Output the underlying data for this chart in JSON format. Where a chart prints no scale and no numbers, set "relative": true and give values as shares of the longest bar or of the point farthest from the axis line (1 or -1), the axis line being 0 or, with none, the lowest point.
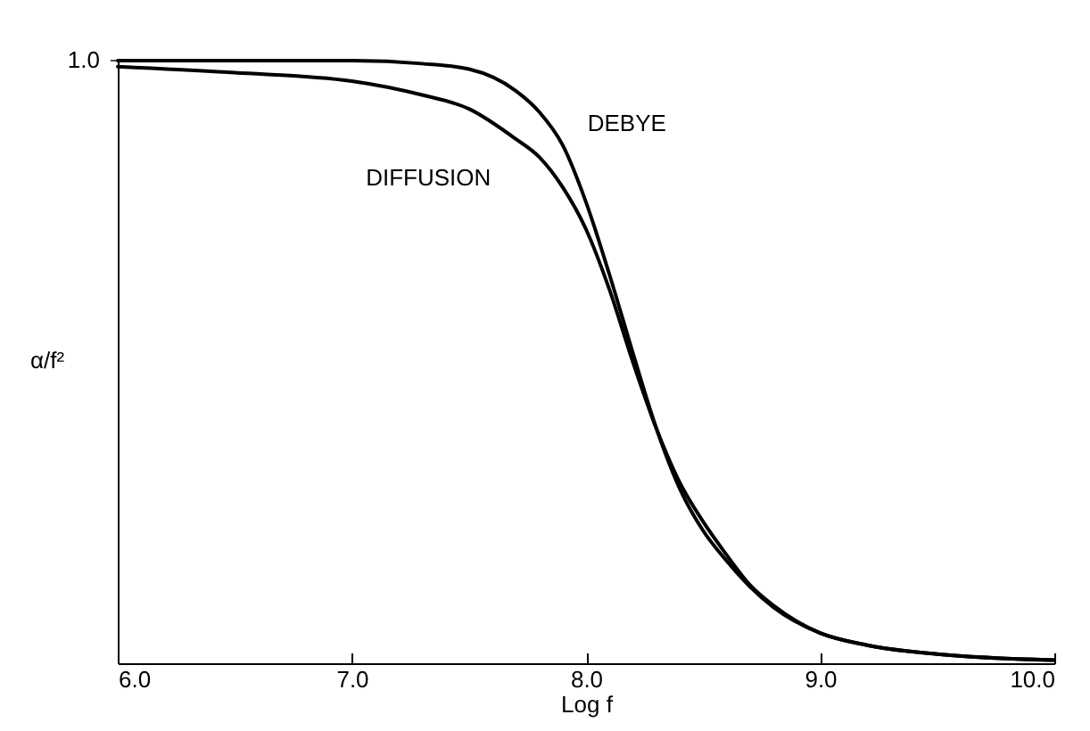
{
  "chart_data": {
    "type": "line",
    "xlabel": "Log f",
    "ylabel": "α/f²",
    "relative": true,
    "x": [
      6.0,
      6.5,
      7.0,
      7.3,
      7.5,
      7.7,
      7.8,
      7.9,
      8.0,
      8.1,
      8.2,
      8.3,
      8.4,
      8.5,
      8.6,
      8.7,
      8.8,
      9.0,
      9.2,
      9.5,
      10.0
    ],
    "xlim": [
      6.0,
      10.0
    ],
    "xticks": [
      {
        "value": 6,
        "label": "6.0"
      },
      {
        "value": 7,
        "label": "7.0"
      },
      {
        "value": 8,
        "label": "8.0"
      },
      {
        "value": 9,
        "label": "9.0"
      },
      {
        "value": 10,
        "label": "10.0"
      }
    ],
    "series": [
      {
        "name": "DEBYE",
        "color": "#000000",
        "values": [
          1.0,
          1.0,
          1.0,
          0.995,
          0.986,
          0.95,
          0.915,
          0.86,
          0.765,
          0.645,
          0.515,
          0.39,
          0.29,
          0.22,
          0.17,
          0.127,
          0.093,
          0.05,
          0.03,
          0.015,
          0.005
        ]
      },
      {
        "name": "DIFFUSION",
        "color": "#000000",
        "values": [
          0.99,
          0.98,
          0.966,
          0.943,
          0.92,
          0.87,
          0.84,
          0.79,
          0.72,
          0.62,
          0.5,
          0.39,
          0.3,
          0.235,
          0.18,
          0.13,
          0.096,
          0.05,
          0.03,
          0.015,
          0.005
        ]
      }
    ],
    "annotations": [
      {
        "text": "1.0",
        "x": 6.0,
        "y": 1
      }
    ],
    "grid": false,
    "marker": "none",
    "line_style": "solid"
  }
}
